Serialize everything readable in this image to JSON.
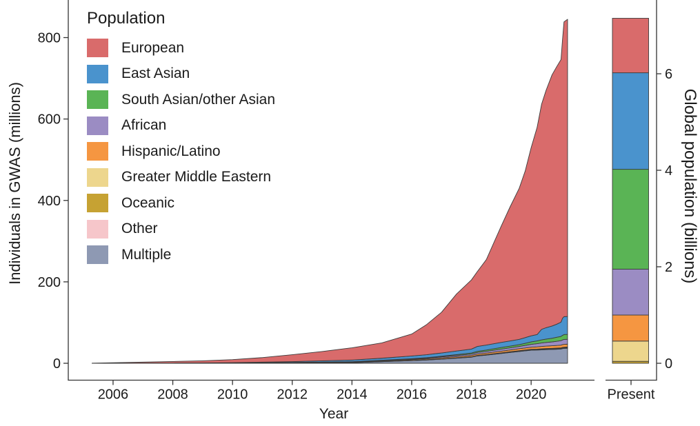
{
  "figure": {
    "legend_title": "Population",
    "y_axis_title": "Individuals in GWAS (millions)",
    "x_axis_title": "Year",
    "right_axis_title": "Global population (billions)",
    "text_color": "#1a1a1a",
    "axis_line_color": "#333333",
    "outline_color": "#3b3b3b",
    "background_color": "#ffffff"
  },
  "chart_data": {
    "type": "area",
    "variant": "stacked-area with companion stacked bar",
    "title": "",
    "xlabel": "Year",
    "ylabel": "Individuals in GWAS (millions)",
    "y2label": "Global population (billions)",
    "xlim": [
      2004.5,
      2022.1
    ],
    "ylim": [
      0,
      880
    ],
    "y2lim": [
      0,
      7.9
    ],
    "grid": false,
    "legend_position": "inside top-left",
    "x_ticks": [
      2006,
      2008,
      2010,
      2012,
      2014,
      2016,
      2018,
      2020
    ],
    "y_ticks": [
      0,
      200,
      400,
      600,
      800
    ],
    "y2_ticks": [
      0,
      2,
      4,
      6
    ],
    "x": [
      2005.3,
      2006,
      2007,
      2008,
      2009,
      2010,
      2011,
      2012,
      2013,
      2014,
      2015,
      2016,
      2016.5,
      2017,
      2017.5,
      2018,
      2018.2,
      2018.5,
      2019,
      2019.3,
      2019.6,
      2019.8,
      2020,
      2020.2,
      2020.35,
      2020.5,
      2020.7,
      2020.85,
      2021,
      2021.05,
      2021.1,
      2021.22
    ],
    "stack_note": "series listed top-to-bottom as in legend; stacked bottom-up in reverse order (Multiple at bottom, European on top); values in millions of GWAS participants",
    "series": [
      {
        "name": "European",
        "color": "#D96B6B",
        "values": [
          0.3,
          1.3,
          2.5,
          3.8,
          5.1,
          7.4,
          11.2,
          16.9,
          22.9,
          30,
          37.5,
          54,
          74,
          100,
          140,
          170,
          184,
          210,
          286,
          330,
          371,
          409,
          462,
          509,
          553,
          583,
          617,
          632,
          645,
          684,
          724,
          730
        ]
      },
      {
        "name": "East Asian",
        "color": "#4A93CD",
        "values": [
          0,
          0.05,
          0.1,
          0.3,
          0.5,
          1,
          1.5,
          2,
          3,
          4,
          5,
          6.5,
          7.2,
          8,
          8.8,
          9.5,
          12,
          12.2,
          12.5,
          12.8,
          13,
          14,
          15,
          15.5,
          26,
          28,
          30,
          32,
          35,
          42,
          44,
          44
        ]
      },
      {
        "name": "South Asian/other Asian",
        "color": "#5AB455",
        "values": [
          0,
          0,
          0.01,
          0.02,
          0.03,
          0.05,
          0.15,
          0.3,
          0.4,
          0.5,
          0.7,
          1,
          1.2,
          1.5,
          2,
          2.5,
          2.8,
          3.2,
          4,
          4.2,
          4.5,
          5.2,
          6,
          6.8,
          7.5,
          8.2,
          9,
          9.8,
          10.5,
          11.2,
          12,
          12
        ]
      },
      {
        "name": "African",
        "color": "#9B8CC3",
        "values": [
          0,
          0,
          0.01,
          0.03,
          0.04,
          0.05,
          0.15,
          0.3,
          0.45,
          0.6,
          0.8,
          1.2,
          1.8,
          2.5,
          3,
          3.5,
          3.8,
          4.2,
          5,
          5.2,
          5.5,
          6.2,
          7,
          7.8,
          8.5,
          9,
          9.5,
          10.2,
          11,
          11.5,
          12,
          12
        ]
      },
      {
        "name": "Hispanic/Latino",
        "color": "#F59641",
        "values": [
          0,
          0.01,
          0.02,
          0.05,
          0.08,
          0.1,
          0.3,
          0.5,
          0.8,
          1,
          1.5,
          2,
          2.2,
          2.5,
          2.8,
          3.2,
          3.5,
          3.7,
          4,
          4.4,
          4.8,
          5,
          5.2,
          5.5,
          5.8,
          6,
          6.2,
          6.4,
          6.6,
          6.8,
          7,
          7
        ]
      },
      {
        "name": "Greater Middle Eastern",
        "color": "#EDD68D",
        "values": [
          0,
          0,
          0,
          0,
          0,
          0.02,
          0.04,
          0.06,
          0.08,
          0.1,
          0.12,
          0.2,
          0.25,
          0.3,
          0.35,
          0.4,
          0.5,
          0.55,
          0.7,
          0.75,
          0.8,
          0.9,
          1,
          1.05,
          1.2,
          1.25,
          1.3,
          1.32,
          1.35,
          1.4,
          1.4,
          1.4
        ]
      },
      {
        "name": "Oceanic",
        "color": "#C6A233",
        "values": [
          0,
          0,
          0,
          0,
          0,
          0.01,
          0.02,
          0.03,
          0.04,
          0.05,
          0.05,
          0.06,
          0.06,
          0.07,
          0.07,
          0.08,
          0.08,
          0.08,
          0.09,
          0.09,
          0.09,
          0.1,
          0.1,
          0.1,
          0.1,
          0.1,
          0.1,
          0.1,
          0.1,
          0.1,
          0.1,
          0.1
        ]
      },
      {
        "name": "Other",
        "color": "#F6C6CA",
        "values": [
          0,
          0,
          0.02,
          0.04,
          0.06,
          0.08,
          0.1,
          0.15,
          0.2,
          0.25,
          0.3,
          0.35,
          0.4,
          0.5,
          0.55,
          0.6,
          0.7,
          0.8,
          1,
          1.05,
          1.1,
          1.15,
          1.2,
          1.25,
          1.3,
          1.35,
          1.4,
          1.42,
          1.45,
          1.5,
          1.5,
          1.5
        ]
      },
      {
        "name": "Multiple",
        "color": "#8E99B3",
        "values": [
          0,
          0.05,
          0.1,
          0.15,
          0.2,
          0.3,
          0.5,
          0.8,
          1.1,
          1.5,
          4,
          6.5,
          8,
          10,
          12.5,
          15,
          18,
          20,
          24,
          26.5,
          29,
          30.5,
          32,
          32.5,
          33,
          33.5,
          34,
          34.5,
          35,
          36,
          36.5,
          37
        ]
      }
    ],
    "present_bar": {
      "label": "Present",
      "units": "billions of people",
      "segments_bottom_up": [
        {
          "name": "Oceanic",
          "color": "#C6A233",
          "value": 0.04
        },
        {
          "name": "Greater Middle Eastern",
          "color": "#EDD68D",
          "value": 0.42
        },
        {
          "name": "Hispanic/Latino",
          "color": "#F59641",
          "value": 0.54
        },
        {
          "name": "African",
          "color": "#9B8CC3",
          "value": 0.95
        },
        {
          "name": "South Asian/other Asian",
          "color": "#5AB455",
          "value": 2.07
        },
        {
          "name": "East Asian",
          "color": "#4A93CD",
          "value": 2.0
        },
        {
          "name": "European",
          "color": "#D96B6B",
          "value": 1.13
        }
      ]
    }
  }
}
